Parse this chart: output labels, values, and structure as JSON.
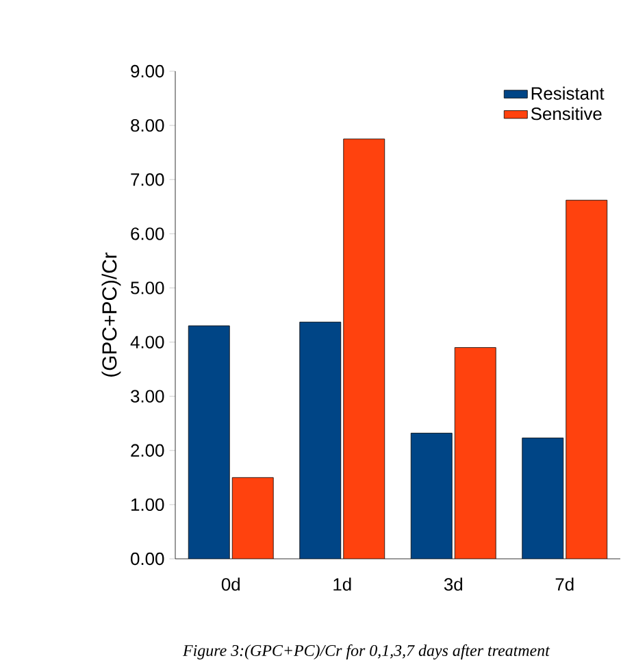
{
  "chart_data": {
    "type": "bar",
    "ylabel": "(GPC+PC)/Cr",
    "categories": [
      "0d",
      "1d",
      "3d",
      "7d"
    ],
    "series": [
      {
        "name": "Resistant",
        "color": "#004586",
        "values": [
          4.3,
          4.37,
          2.32,
          2.23
        ]
      },
      {
        "name": "Sensitive",
        "color": "#ff420e",
        "values": [
          1.5,
          7.75,
          3.9,
          6.62
        ]
      }
    ],
    "ylim": [
      0,
      9
    ],
    "yticks": [
      {
        "value": 0,
        "label": "0.00"
      },
      {
        "value": 1,
        "label": "1.00"
      },
      {
        "value": 2,
        "label": "2.00"
      },
      {
        "value": 3,
        "label": "3.00"
      },
      {
        "value": 4,
        "label": "4.00"
      },
      {
        "value": 5,
        "label": "5.00"
      },
      {
        "value": 6,
        "label": "6.00"
      },
      {
        "value": 7,
        "label": "7.00"
      },
      {
        "value": 8,
        "label": "8.00"
      },
      {
        "value": 9,
        "label": "9.00"
      }
    ],
    "legend": "top right",
    "annotations": [
      "Figure 3:(GPC+PC)/Cr for 0,1,3,7 days after treatment"
    ]
  }
}
